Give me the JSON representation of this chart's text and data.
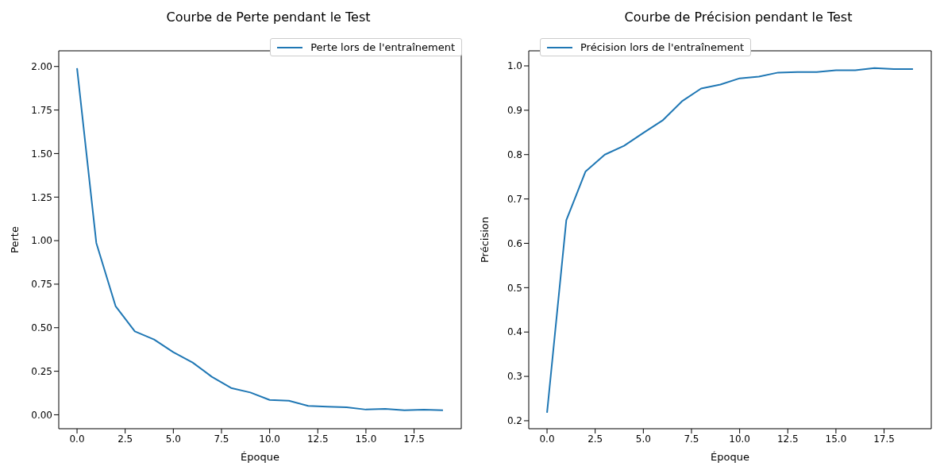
{
  "chart_data": [
    {
      "type": "line",
      "title": "Courbe de Perte pendant le Test",
      "xlabel": "Époque",
      "ylabel": "Perte",
      "x": [
        0,
        1,
        2,
        3,
        4,
        5,
        6,
        7,
        8,
        9,
        10,
        11,
        12,
        13,
        14,
        15,
        16,
        17,
        18,
        19
      ],
      "series": [
        {
          "name": "Perte lors de l'entraînement",
          "color": "#1f77b4",
          "values": [
            1.99,
            0.987,
            0.624,
            0.479,
            0.432,
            0.359,
            0.3,
            0.218,
            0.154,
            0.128,
            0.085,
            0.081,
            0.051,
            0.047,
            0.043,
            0.03,
            0.034,
            0.026,
            0.029,
            0.026
          ]
        }
      ],
      "xlim": [
        -0.95,
        19.95
      ],
      "xticks": [
        {
          "value": 0,
          "label": "0.0"
        },
        2.5,
        {
          "value": 5,
          "label": "5.0"
        },
        7.5,
        {
          "value": 10,
          "label": "10.0"
        },
        12.5,
        {
          "value": 15,
          "label": "15.0"
        },
        17.5
      ],
      "ylim": [
        -0.08,
        2.09
      ],
      "yticks": [
        {
          "value": 0,
          "label": "0.00"
        },
        0.25,
        {
          "value": 0.5,
          "label": "0.50"
        },
        0.75,
        {
          "value": 1,
          "label": "1.00"
        },
        1.25,
        {
          "value": 1.5,
          "label": "1.50"
        },
        1.75,
        {
          "value": 2,
          "label": "2.00"
        }
      ],
      "grid": false,
      "legend": "top right",
      "marker": "none",
      "line_style": "solid"
    },
    {
      "type": "line",
      "title": "Courbe de Précision pendant le Test",
      "xlabel": "Époque",
      "ylabel": "Précision",
      "x": [
        0,
        1,
        2,
        3,
        4,
        5,
        6,
        7,
        8,
        9,
        10,
        11,
        12,
        13,
        14,
        15,
        16,
        17,
        18,
        19
      ],
      "series": [
        {
          "name": "Précision lors de l'entraînement",
          "color": "#1f77b4",
          "values": [
            0.218,
            0.652,
            0.762,
            0.8,
            0.82,
            0.849,
            0.877,
            0.92,
            0.949,
            0.958,
            0.972,
            0.976,
            0.985,
            0.986,
            0.986,
            0.99,
            0.99,
            0.995,
            0.993,
            0.993
          ]
        }
      ],
      "xlim": [
        -0.95,
        19.95
      ],
      "xticks": [
        {
          "value": 0,
          "label": "0.0"
        },
        2.5,
        {
          "value": 5,
          "label": "5.0"
        },
        7.5,
        {
          "value": 10,
          "label": "10.0"
        },
        12.5,
        {
          "value": 15,
          "label": "15.0"
        },
        17.5
      ],
      "ylim": [
        0.182,
        1.034
      ],
      "yticks": [
        0.2,
        0.3,
        0.4,
        0.5,
        0.6,
        0.7,
        0.8,
        0.9,
        {
          "value": 1,
          "label": "1.0"
        }
      ],
      "grid": false,
      "legend": "top left",
      "marker": "none",
      "line_style": "solid"
    }
  ]
}
